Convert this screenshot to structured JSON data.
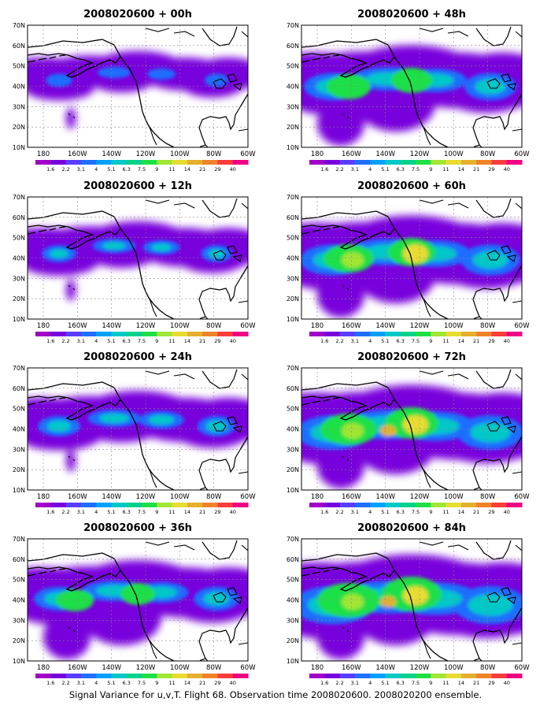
{
  "caption": "Signal Variance for u,v,T. Flight 68. Observation time 2008020600. 2008020200 ensemble.",
  "lat_labels": [
    "70N",
    "60N",
    "50N",
    "40N",
    "30N",
    "20N",
    "10N"
  ],
  "lon_labels": [
    "180",
    "160W",
    "140W",
    "120W",
    "100W",
    "80W",
    "60W"
  ],
  "colorbar": {
    "levels": [
      "1.6",
      "2.2",
      "3.1",
      "4",
      "5.1",
      "6.3",
      "7.5",
      "9",
      "11",
      "14",
      "21",
      "29",
      "40"
    ],
    "colors": [
      "#a000c8",
      "#7800dc",
      "#5a3cff",
      "#1e6eff",
      "#00a0ff",
      "#00c8c8",
      "#00d28c",
      "#1ee046",
      "#a0e632",
      "#e6dc32",
      "#e6af2d",
      "#f08228",
      "#fa3c3c",
      "#f00082"
    ]
  },
  "panels": [
    {
      "title": "2008020600 + 00h"
    },
    {
      "title": "2008020600 + 48h"
    },
    {
      "title": "2008020600 + 12h"
    },
    {
      "title": "2008020600 + 60h"
    },
    {
      "title": "2008020600 + 24h"
    },
    {
      "title": "2008020600 + 72h"
    },
    {
      "title": "2008020600 + 36h"
    },
    {
      "title": "2008020600 + 84h"
    }
  ]
}
